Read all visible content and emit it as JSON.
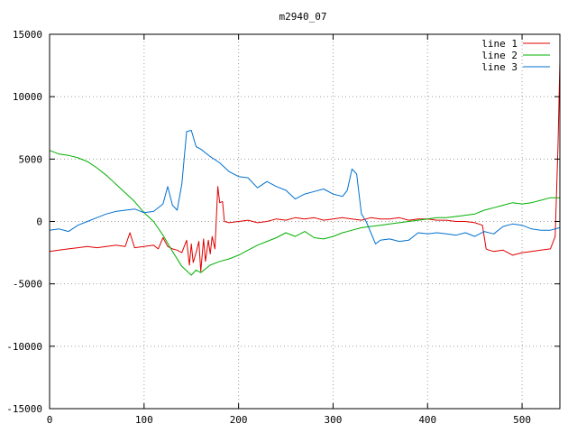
{
  "chart_data": {
    "type": "line",
    "title": "m2940_07",
    "xlabel": "",
    "ylabel": "",
    "xlim": [
      0,
      540
    ],
    "ylim": [
      -15000,
      15000
    ],
    "x_ticks": [
      0,
      100,
      200,
      300,
      400,
      500
    ],
    "y_ticks": [
      -15000,
      -10000,
      -5000,
      0,
      5000,
      10000,
      15000
    ],
    "grid": true,
    "legend_position": "top-right",
    "series": [
      {
        "name": "line 1",
        "color": "#e00000",
        "x": [
          0,
          10,
          20,
          30,
          40,
          50,
          60,
          70,
          80,
          85,
          90,
          100,
          110,
          115,
          120,
          125,
          130,
          135,
          140,
          145,
          148,
          150,
          152,
          155,
          158,
          160,
          163,
          165,
          168,
          170,
          172,
          175,
          178,
          180,
          183,
          185,
          190,
          200,
          210,
          220,
          230,
          240,
          250,
          260,
          270,
          280,
          290,
          300,
          310,
          320,
          330,
          340,
          350,
          360,
          370,
          380,
          390,
          400,
          410,
          420,
          430,
          440,
          450,
          458,
          462,
          465,
          470,
          480,
          490,
          500,
          510,
          520,
          530,
          535,
          538,
          540
        ],
        "y": [
          -2400,
          -2300,
          -2200,
          -2100,
          -2000,
          -2100,
          -2000,
          -1900,
          -2000,
          -900,
          -2100,
          -2000,
          -1900,
          -2200,
          -1300,
          -2000,
          -2200,
          -2300,
          -2500,
          -1500,
          -3500,
          -1800,
          -3300,
          -2500,
          -1600,
          -4000,
          -1400,
          -3200,
          -1500,
          -2600,
          -1200,
          -2200,
          2800,
          1500,
          1600,
          0,
          -100,
          0,
          100,
          -100,
          0,
          200,
          100,
          300,
          200,
          300,
          100,
          200,
          300,
          200,
          100,
          300,
          200,
          200,
          300,
          100,
          200,
          200,
          100,
          100,
          0,
          0,
          -100,
          -300,
          -2200,
          -2300,
          -2400,
          -2300,
          -2700,
          -2500,
          -2400,
          -2300,
          -2200,
          -1200,
          6000,
          12800
        ]
      },
      {
        "name": "line 2",
        "color": "#00b000",
        "x": [
          0,
          10,
          20,
          30,
          40,
          50,
          60,
          70,
          80,
          90,
          100,
          110,
          120,
          130,
          140,
          150,
          155,
          160,
          170,
          180,
          190,
          200,
          210,
          220,
          230,
          240,
          250,
          260,
          270,
          280,
          290,
          300,
          310,
          320,
          330,
          340,
          350,
          360,
          370,
          380,
          390,
          400,
          410,
          420,
          430,
          440,
          450,
          460,
          470,
          480,
          490,
          500,
          510,
          520,
          530,
          540
        ],
        "y": [
          5700,
          5400,
          5300,
          5100,
          4800,
          4300,
          3700,
          3000,
          2300,
          1600,
          700,
          0,
          -1100,
          -2400,
          -3600,
          -4300,
          -3900,
          -4100,
          -3500,
          -3200,
          -3000,
          -2700,
          -2300,
          -1900,
          -1600,
          -1300,
          -900,
          -1200,
          -800,
          -1300,
          -1400,
          -1200,
          -900,
          -700,
          -500,
          -400,
          -300,
          -200,
          -100,
          0,
          100,
          200,
          300,
          300,
          400,
          500,
          600,
          900,
          1100,
          1300,
          1500,
          1400,
          1500,
          1700,
          1900,
          1900
        ]
      },
      {
        "name": "line 3",
        "color": "#0070d0",
        "x": [
          0,
          10,
          20,
          30,
          40,
          50,
          60,
          70,
          80,
          90,
          100,
          110,
          120,
          125,
          130,
          135,
          140,
          145,
          150,
          155,
          160,
          170,
          180,
          190,
          200,
          210,
          220,
          230,
          240,
          250,
          260,
          270,
          280,
          290,
          300,
          310,
          315,
          320,
          325,
          330,
          335,
          340,
          345,
          350,
          360,
          370,
          380,
          390,
          400,
          410,
          420,
          430,
          440,
          450,
          460,
          470,
          480,
          490,
          500,
          510,
          520,
          530,
          540
        ],
        "y": [
          -700,
          -600,
          -800,
          -300,
          0,
          300,
          600,
          800,
          900,
          1000,
          700,
          800,
          1400,
          2800,
          1300,
          900,
          3000,
          7200,
          7300,
          6000,
          5800,
          5200,
          4700,
          4000,
          3600,
          3500,
          2700,
          3200,
          2800,
          2500,
          1800,
          2200,
          2400,
          2600,
          2200,
          2000,
          2500,
          4200,
          3800,
          600,
          0,
          -900,
          -1800,
          -1500,
          -1400,
          -1600,
          -1500,
          -900,
          -1000,
          -900,
          -1000,
          -1100,
          -900,
          -1200,
          -800,
          -1000,
          -400,
          -200,
          -300,
          -600,
          -700,
          -700,
          -500
        ]
      }
    ]
  }
}
